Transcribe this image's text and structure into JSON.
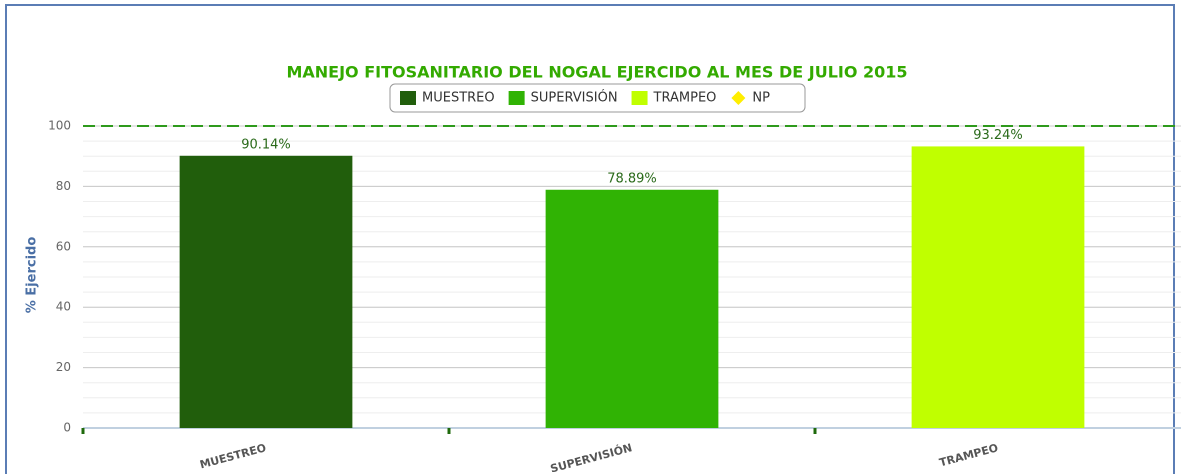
{
  "chart_data": {
    "type": "bar",
    "title": "MANEJO FITOSANITARIO DEL NOGAL EJERCIDO AL MES DE JULIO 2015",
    "y_label": "% Ejercido",
    "categories": [
      "MUESTREO",
      "SUPERVISIÓN",
      "TRAMPEO"
    ],
    "values": [
      90.14,
      78.89,
      93.24
    ],
    "value_labels": [
      "90.14%",
      "78.89%",
      "93.24%"
    ],
    "colors": [
      "#215e0c",
      "#30b304",
      "#c0ff00"
    ],
    "legend": [
      {
        "name": "MUESTREO",
        "color": "#215e0c",
        "marker": "square"
      },
      {
        "name": "SUPERVISIÓN",
        "color": "#30b304",
        "marker": "square"
      },
      {
        "name": "TRAMPEO",
        "color": "#c0ff00",
        "marker": "square"
      },
      {
        "name": "NP",
        "color": "#ffee00",
        "marker": "diamond"
      }
    ],
    "plot_line": {
      "value": 100,
      "color": "#2e9a1c",
      "dashed": true
    },
    "ylim": [
      0,
      100
    ],
    "yticks": [
      0,
      20,
      40,
      60,
      80,
      100
    ],
    "grid": true
  }
}
